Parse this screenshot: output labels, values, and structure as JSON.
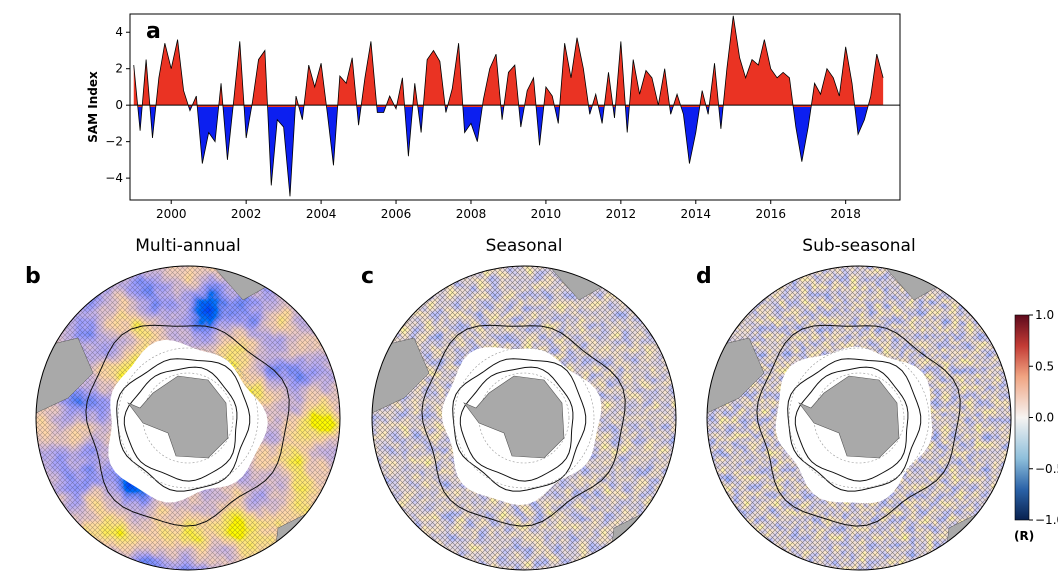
{
  "chart_data": {
    "type": "area",
    "panel_label": "a",
    "y_label": "SAM Index",
    "x": [
      1999.0,
      1999.17,
      1999.33,
      1999.5,
      1999.67,
      1999.83,
      2000.0,
      2000.17,
      2000.33,
      2000.5,
      2000.67,
      2000.83,
      2001.0,
      2001.17,
      2001.33,
      2001.5,
      2001.67,
      2001.83,
      2002.0,
      2002.17,
      2002.33,
      2002.5,
      2002.67,
      2002.83,
      2003.0,
      2003.17,
      2003.33,
      2003.5,
      2003.67,
      2003.83,
      2004.0,
      2004.17,
      2004.33,
      2004.5,
      2004.67,
      2004.83,
      2005.0,
      2005.17,
      2005.33,
      2005.5,
      2005.67,
      2005.83,
      2006.0,
      2006.17,
      2006.33,
      2006.5,
      2006.67,
      2006.83,
      2007.0,
      2007.17,
      2007.33,
      2007.5,
      2007.67,
      2007.83,
      2008.0,
      2008.17,
      2008.33,
      2008.5,
      2008.67,
      2008.83,
      2009.0,
      2009.17,
      2009.33,
      2009.5,
      2009.67,
      2009.83,
      2010.0,
      2010.17,
      2010.33,
      2010.5,
      2010.67,
      2010.83,
      2011.0,
      2011.17,
      2011.33,
      2011.5,
      2011.67,
      2011.83,
      2012.0,
      2012.17,
      2012.33,
      2012.5,
      2012.67,
      2012.83,
      2013.0,
      2013.17,
      2013.33,
      2013.5,
      2013.67,
      2013.83,
      2014.0,
      2014.17,
      2014.33,
      2014.5,
      2014.67,
      2014.83,
      2015.0,
      2015.17,
      2015.33,
      2015.5,
      2015.67,
      2015.83,
      2016.0,
      2016.17,
      2016.33,
      2016.5,
      2016.67,
      2016.83,
      2017.0,
      2017.17,
      2017.33,
      2017.5,
      2017.67,
      2017.83,
      2018.0,
      2018.17,
      2018.33,
      2018.5,
      2018.67,
      2018.83,
      2019.0
    ],
    "values": [
      2.2,
      -1.4,
      2.5,
      -1.8,
      1.5,
      3.4,
      2.0,
      3.6,
      0.8,
      -0.3,
      0.5,
      -3.2,
      -1.5,
      -2.0,
      1.2,
      -3.0,
      0.3,
      3.5,
      -1.8,
      0.2,
      2.5,
      3.0,
      -4.4,
      -0.8,
      -1.2,
      -5.0,
      0.5,
      -0.8,
      2.2,
      1.0,
      2.3,
      -0.5,
      -3.3,
      1.6,
      1.2,
      2.6,
      -1.1,
      1.5,
      3.5,
      -0.4,
      -0.4,
      0.5,
      -0.2,
      1.5,
      -2.8,
      1.2,
      -1.5,
      2.5,
      3.0,
      2.4,
      -0.4,
      0.9,
      3.4,
      -1.5,
      -1.0,
      -2.0,
      0.3,
      2.0,
      2.8,
      -0.8,
      1.8,
      2.2,
      -1.2,
      0.8,
      1.5,
      -2.2,
      1.0,
      0.5,
      -1.0,
      3.4,
      1.5,
      3.7,
      2.0,
      -0.5,
      0.6,
      -1.0,
      1.8,
      -0.7,
      3.5,
      -1.5,
      2.5,
      0.6,
      1.9,
      1.5,
      0.0,
      2.0,
      -0.5,
      0.6,
      -0.5,
      -3.2,
      -1.5,
      0.8,
      -0.5,
      2.3,
      -1.3,
      2.0,
      4.9,
      2.6,
      1.5,
      2.5,
      2.2,
      3.6,
      2.0,
      1.5,
      1.8,
      1.5,
      -1.2,
      -3.1,
      -1.2,
      1.2,
      0.6,
      2.0,
      1.5,
      0.5,
      3.2,
      1.2,
      -1.6,
      -0.8,
      0.5,
      2.8,
      1.5
    ],
    "colors": {
      "positive": "#ea3323",
      "negative": "#0c1ff0"
    },
    "xlim": [
      1998.9,
      2019.45
    ],
    "ylim": [
      -5.2,
      5.0
    ],
    "xticks": [
      2000,
      2002,
      2004,
      2006,
      2008,
      2010,
      2012,
      2014,
      2016,
      2018
    ],
    "yticks": [
      {
        "value": -4,
        "label": "−4"
      },
      {
        "value": -2,
        "label": "−2"
      },
      0,
      2,
      4
    ]
  },
  "maps": [
    {
      "label": "b",
      "title": "Multi-annual"
    },
    {
      "label": "c",
      "title": "Seasonal"
    },
    {
      "label": "d",
      "title": "Sub-seasonal"
    }
  ],
  "colorbar": {
    "label": "(R)",
    "lim": [
      -1,
      1
    ],
    "ticks": [
      {
        "value": 1,
        "label": "1.0"
      },
      {
        "value": 0.5,
        "label": "0.5"
      },
      {
        "value": 0,
        "label": "0.0"
      },
      {
        "value": -0.5,
        "label": "−0.5"
      },
      {
        "value": -1,
        "label": "−1.0"
      }
    ]
  }
}
